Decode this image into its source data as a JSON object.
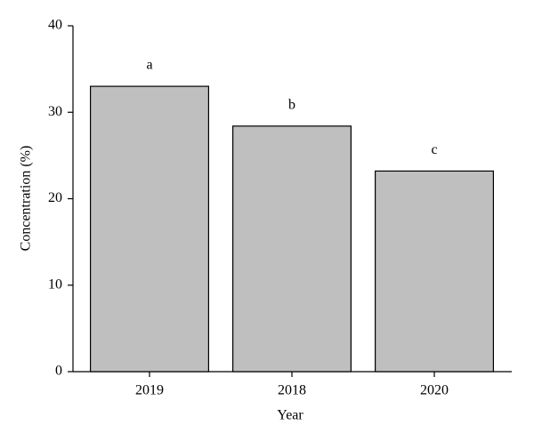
{
  "chart_data": {
    "type": "bar",
    "x_label": "Year",
    "y_label": "Concentration (%)",
    "categories": [
      "2019",
      "2018",
      "2020"
    ],
    "values": [
      33.0,
      28.4,
      23.2
    ],
    "bar_labels": [
      "a",
      "b",
      "c"
    ],
    "color": "#bfbfbf",
    "ylim": [
      0,
      40
    ],
    "yticks": [
      0,
      10,
      20,
      30,
      40
    ],
    "grid": false
  }
}
